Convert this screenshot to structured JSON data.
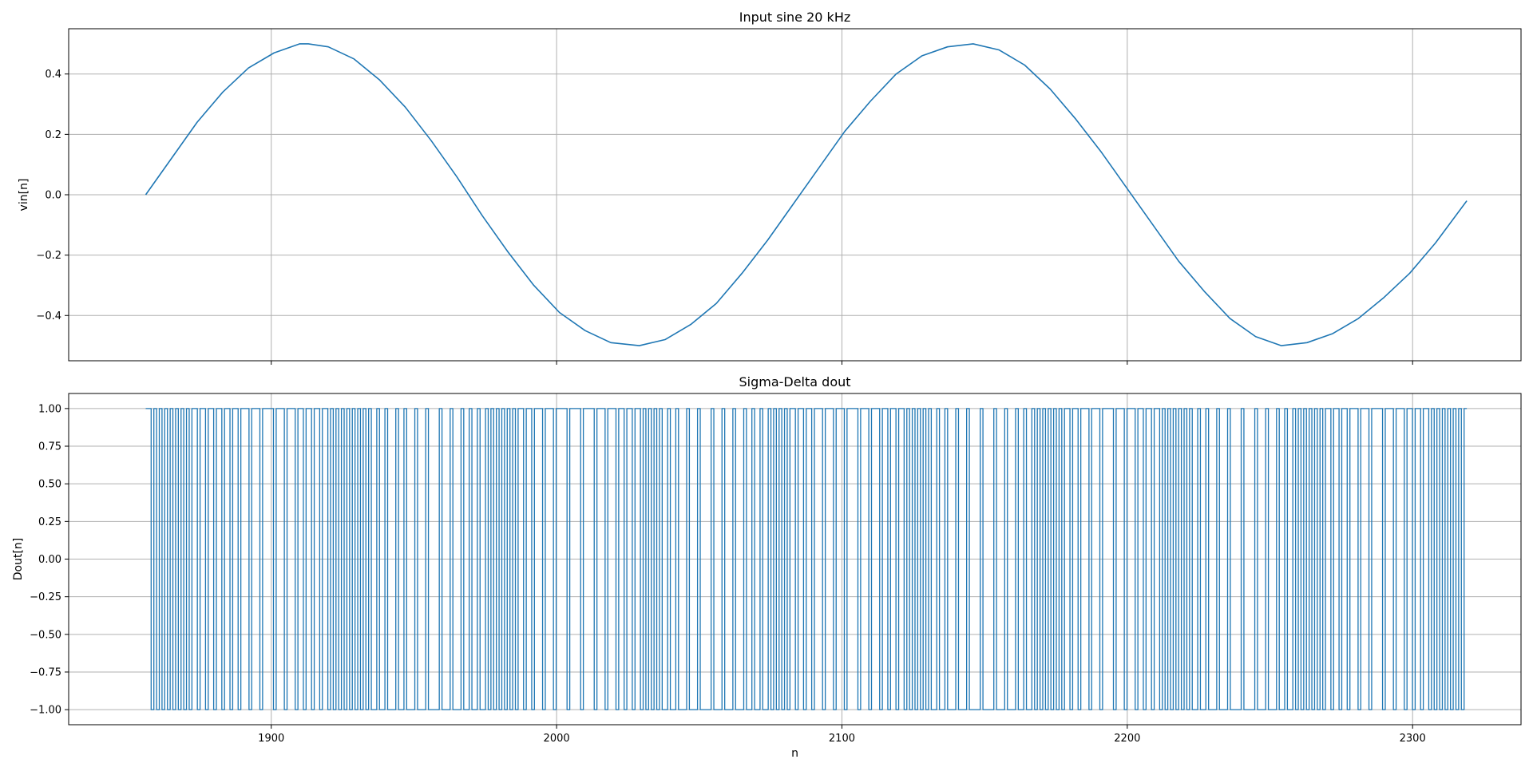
{
  "figure": {
    "xlabel": "n"
  },
  "chart_data": [
    {
      "type": "line",
      "title": "Input sine 20 kHz",
      "xlabel": "",
      "ylabel": "vin[n]",
      "xlim": [
        1829,
        2338
      ],
      "ylim": [
        -0.55,
        0.55
      ],
      "xticks": [
        1900,
        2000,
        2100,
        2200,
        2300
      ],
      "xtick_labels": [
        "",
        "",
        "",
        "",
        ""
      ],
      "yticks": [
        0.4,
        0.2,
        0.0,
        -0.2,
        -0.4
      ],
      "ytick_labels": [
        "0.4",
        "0.2",
        "0.0",
        "−0.2",
        "−0.4"
      ],
      "grid": true,
      "color": "#1f77b4",
      "series": [
        {
          "x": [
            1856,
            1865,
            1874,
            1883,
            1892,
            1901,
            1910,
            1913,
            1920,
            1929,
            1938,
            1947,
            1956,
            1965,
            1974,
            1983,
            1992,
            2001,
            2010,
            2019,
            2029,
            2038,
            2047,
            2056,
            2065,
            2074,
            2083,
            2092,
            2101,
            2110,
            2119,
            2128,
            2137,
            2146,
            2155,
            2164,
            2173,
            2182,
            2191,
            2200,
            2209,
            2218,
            2227,
            2236,
            2245,
            2254,
            2263,
            2272,
            2281,
            2290,
            2299,
            2308,
            2319
          ],
          "y": [
            0.0,
            0.12,
            0.24,
            0.34,
            0.42,
            0.47,
            0.5,
            0.5,
            0.49,
            0.45,
            0.38,
            0.29,
            0.18,
            0.06,
            -0.07,
            -0.19,
            -0.3,
            -0.39,
            -0.45,
            -0.49,
            -0.5,
            -0.48,
            -0.43,
            -0.36,
            -0.26,
            -0.15,
            -0.03,
            0.09,
            0.21,
            0.31,
            0.4,
            0.46,
            0.49,
            0.5,
            0.48,
            0.43,
            0.35,
            0.25,
            0.14,
            0.02,
            -0.1,
            -0.22,
            -0.32,
            -0.41,
            -0.47,
            -0.5,
            -0.49,
            -0.46,
            -0.41,
            -0.34,
            -0.26,
            -0.16,
            -0.02
          ]
        }
      ]
    },
    {
      "type": "line",
      "title": "Sigma-Delta dout",
      "xlabel": "n",
      "ylabel": "Dout[n]",
      "xlim": [
        1829,
        2338
      ],
      "ylim": [
        -1.1,
        1.1
      ],
      "xticks": [
        1900,
        2000,
        2100,
        2200,
        2300
      ],
      "xtick_labels": [
        "1900",
        "2000",
        "2100",
        "2200",
        "2300"
      ],
      "yticks": [
        1.0,
        0.75,
        0.5,
        0.25,
        0.0,
        -0.25,
        -0.5,
        -0.75,
        -1.0
      ],
      "ytick_labels": [
        "1.00",
        "0.75",
        "0.50",
        "0.25",
        "0.00",
        "−0.25",
        "−0.50",
        "−0.75",
        "−1.00"
      ],
      "grid": true,
      "color": "#1f77b4",
      "step": "post",
      "x_start": 1856,
      "values": [
        1,
        1,
        -1,
        1,
        -1,
        1,
        -1,
        1,
        -1,
        1,
        -1,
        1,
        -1,
        1,
        -1,
        1,
        -1,
        1,
        1,
        -1,
        1,
        1,
        -1,
        1,
        1,
        -1,
        1,
        1,
        -1,
        1,
        1,
        -1,
        1,
        1,
        -1,
        1,
        1,
        1,
        -1,
        1,
        1,
        1,
        -1,
        1,
        1,
        1,
        1,
        -1,
        1,
        1,
        1,
        -1,
        1,
        1,
        1,
        -1,
        1,
        1,
        -1,
        1,
        1,
        -1,
        1,
        1,
        -1,
        1,
        1,
        -1,
        1,
        -1,
        1,
        -1,
        1,
        -1,
        1,
        -1,
        1,
        -1,
        1,
        -1,
        1,
        -1,
        1,
        -1,
        -1,
        1,
        -1,
        -1,
        1,
        -1,
        -1,
        -1,
        1,
        -1,
        -1,
        1,
        -1,
        -1,
        -1,
        1,
        -1,
        -1,
        -1,
        1,
        -1,
        -1,
        -1,
        -1,
        1,
        -1,
        -1,
        -1,
        1,
        -1,
        -1,
        -1,
        1,
        -1,
        -1,
        1,
        -1,
        -1,
        1,
        -1,
        -1,
        1,
        -1,
        1,
        -1,
        1,
        -1,
        1,
        -1,
        1,
        -1,
        1,
        -1,
        1,
        1,
        -1,
        1,
        1,
        -1,
        1,
        1,
        1,
        -1,
        1,
        1,
        1,
        -1,
        1,
        1,
        1,
        1,
        -1,
        1,
        1,
        1,
        1,
        -1,
        1,
        1,
        1,
        1,
        -1,
        1,
        1,
        1,
        -1,
        1,
        1,
        1,
        -1,
        1,
        1,
        -1,
        1,
        1,
        -1,
        1,
        1,
        -1,
        1,
        -1,
        1,
        -1,
        1,
        -1,
        1,
        -1,
        -1,
        1,
        -1,
        -1,
        1,
        -1,
        -1,
        -1,
        1,
        -1,
        -1,
        -1,
        1,
        -1,
        -1,
        -1,
        -1,
        1,
        -1,
        -1,
        -1,
        1,
        -1,
        -1,
        -1,
        1,
        -1,
        -1,
        -1,
        1,
        -1,
        -1,
        1,
        -1,
        -1,
        1,
        -1,
        -1,
        1,
        -1,
        1,
        -1,
        1,
        -1,
        1,
        -1,
        1,
        1,
        -1,
        1,
        1,
        -1,
        1,
        1,
        -1,
        1,
        1,
        1,
        -1,
        1,
        1,
        1,
        -1,
        1,
        1,
        1,
        -1,
        1,
        1,
        1,
        1,
        -1,
        1,
        1,
        1,
        -1,
        1,
        1,
        1,
        -1,
        1,
        1,
        -1,
        1,
        1,
        -1,
        1,
        1,
        -1,
        1,
        -1,
        1,
        -1,
        1,
        -1,
        1,
        -1,
        1,
        -1,
        -1,
        1,
        -1,
        -1,
        1,
        -1,
        -1,
        -1,
        1,
        -1,
        -1,
        -1,
        1,
        -1,
        -1,
        -1,
        -1,
        1,
        -1,
        -1,
        -1,
        -1,
        1,
        -1,
        -1,
        -1,
        1,
        -1,
        -1,
        -1,
        1,
        -1,
        -1,
        1,
        -1,
        -1,
        1,
        -1,
        1,
        -1,
        1,
        -1,
        1,
        -1,
        1,
        -1,
        1,
        -1,
        1,
        1,
        -1,
        1,
        1,
        -1,
        1,
        1,
        1,
        -1,
        1,
        1,
        1,
        -1,
        1,
        1,
        1,
        1,
        -1,
        1,
        1,
        1,
        -1,
        1,
        1,
        1,
        -1,
        1,
        1,
        -1,
        1,
        1,
        -1,
        1,
        1,
        -1,
        1,
        -1,
        1,
        -1,
        1,
        -1,
        1,
        -1,
        1,
        -1,
        1,
        -1,
        -1,
        1,
        -1,
        -1,
        1,
        -1,
        -1,
        -1,
        1,
        -1,
        -1,
        -1,
        1,
        -1,
        -1,
        -1,
        -1,
        1,
        -1,
        -1,
        -1,
        -1,
        1,
        -1,
        -1,
        -1,
        1,
        -1,
        -1,
        -1,
        1,
        -1,
        -1,
        1,
        -1,
        -1,
        1,
        -1,
        1,
        -1,
        1,
        -1,
        1,
        -1,
        1,
        -1,
        1,
        -1,
        1,
        1,
        -1,
        1,
        1,
        -1,
        1,
        1,
        -1,
        1,
        1,
        1,
        -1,
        1,
        1,
        1,
        -1,
        1,
        1,
        1,
        1,
        -1,
        1,
        1,
        1,
        -1,
        1,
        1,
        1,
        -1,
        1,
        1,
        -1,
        1,
        1,
        -1,
        1,
        1,
        -1,
        1,
        -1,
        1,
        -1,
        1,
        -1,
        1,
        -1,
        1,
        -1,
        1,
        -1,
        1,
        1
      ]
    }
  ]
}
